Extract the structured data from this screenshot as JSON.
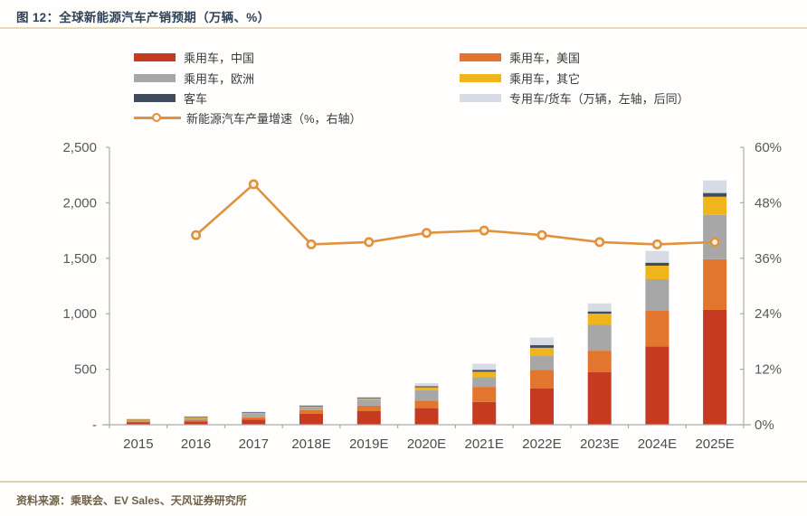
{
  "title": "图 12：全球新能源汽车产销预期（万辆、%）",
  "source": "资料来源：乘联会、EV Sales、天风证券研究所",
  "colors": {
    "china_red": "#c53b22",
    "us_orange": "#e2762f",
    "europe_gray": "#a7a7a7",
    "other_yellow": "#f0b41c",
    "bus_navy": "#3f4d5e",
    "truck_light": "#d6dbe4",
    "growth_line": "#e0923d",
    "axis_line": "#aaaaaa",
    "axis_text": "#595959",
    "title_text": "#2f4257",
    "separator_tan": "#e8d9bd"
  },
  "legend": {
    "items": [
      {
        "label": "乘用车，中国",
        "color": "#c53b22",
        "type": "bar"
      },
      {
        "label": "乘用车，美国",
        "color": "#e2762f",
        "type": "bar"
      },
      {
        "label": "乘用车，欧洲",
        "color": "#a7a7a7",
        "type": "bar"
      },
      {
        "label": "乘用车，其它",
        "color": "#f0b41c",
        "type": "bar"
      },
      {
        "label": "客车",
        "color": "#3f4d5e",
        "type": "bar"
      },
      {
        "label": "专用车/货车（万辆，左轴，后同）",
        "color": "#d6dbe4",
        "type": "bar"
      },
      {
        "label": "新能源汽车产量增速（%，右轴）",
        "color": "#e0923d",
        "type": "line"
      }
    ]
  },
  "chart_data": {
    "type": "bar",
    "subtype": "stacked-bar-with-line",
    "title": "全球新能源汽车产销预期（万辆、%）",
    "xlabel": "",
    "ylabel_left": "万辆",
    "ylabel_right": "%",
    "grid": false,
    "legend_position": "top",
    "categories": [
      "2015",
      "2016",
      "2017",
      "2018E",
      "2019E",
      "2020E",
      "2021E",
      "2022E",
      "2023E",
      "2024E",
      "2025E"
    ],
    "stacked_series": [
      {
        "key": "china",
        "name": "乘用车，中国",
        "color": "#c53b22",
        "values": [
          20,
          30,
          47,
          100,
          122,
          150,
          205,
          326,
          472,
          706,
          1034
        ]
      },
      {
        "key": "us",
        "name": "乘用车，美国",
        "color": "#e2762f",
        "values": [
          10,
          14,
          20,
          33,
          50,
          68,
          136,
          169,
          195,
          320,
          458
        ]
      },
      {
        "key": "europe",
        "name": "乘用车，欧洲",
        "color": "#a7a7a7",
        "values": [
          14,
          18,
          30,
          28,
          55,
          92,
          90,
          130,
          236,
          285,
          400
        ]
      },
      {
        "key": "other",
        "name": "乘用车，其它",
        "color": "#f0b41c",
        "values": [
          4,
          5,
          8,
          8,
          12,
          28,
          46,
          68,
          98,
          122,
          163
        ]
      },
      {
        "key": "bus",
        "name": "客车",
        "color": "#3f4d5e",
        "values": [
          5,
          8,
          8,
          4,
          5,
          10,
          18,
          25,
          20,
          27,
          33
        ]
      },
      {
        "key": "truck",
        "name": "专用车/货车",
        "color": "#d6dbe4",
        "values": [
          2,
          3,
          5,
          5,
          8,
          27,
          55,
          68,
          73,
          106,
          114
        ]
      }
    ],
    "line_series": {
      "name": "新能源汽车产量增速（%，右轴）",
      "color": "#e0923d",
      "start_category_index": 1,
      "values": [
        41,
        52,
        39,
        39.5,
        41.5,
        42,
        41,
        39.5,
        39,
        39.5
      ]
    },
    "left_axis": {
      "min": 0,
      "max": 2500,
      "ticks": [
        "-",
        "500",
        "1,000",
        "1,500",
        "2,000",
        "2,500"
      ]
    },
    "right_axis": {
      "min": 0,
      "max": 60,
      "ticks": [
        "0%",
        "12%",
        "24%",
        "36%",
        "48%",
        "60%"
      ]
    }
  }
}
